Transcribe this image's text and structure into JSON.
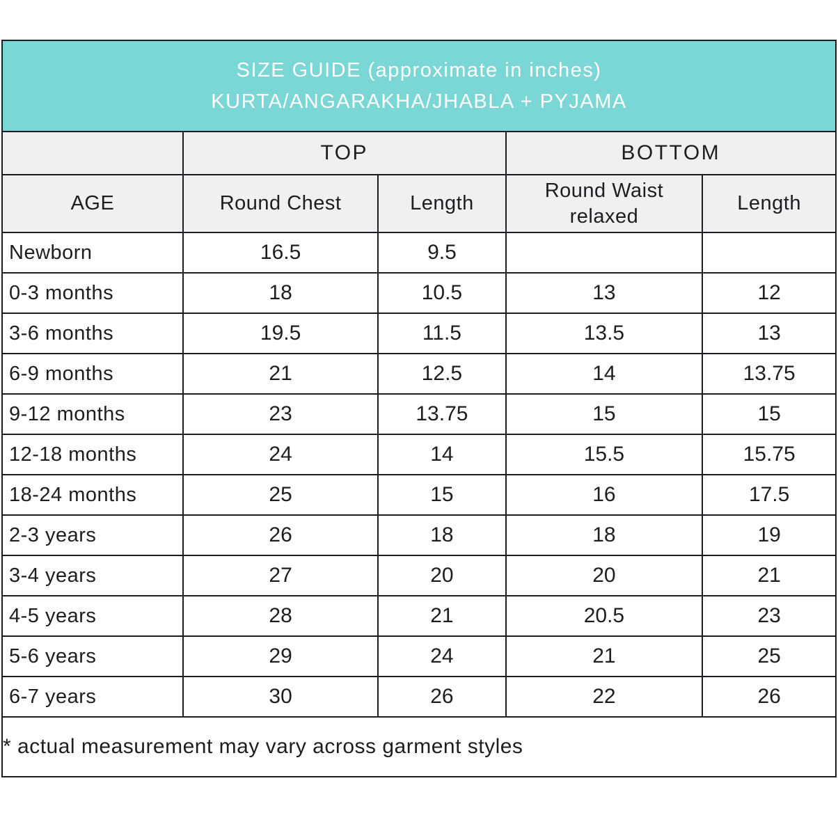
{
  "header": {
    "line1": "SIZE GUIDE (approximate in inches)",
    "line2": "KURTA/ANGARAKHA/JHABLA + PYJAMA"
  },
  "groups": {
    "top": "TOP",
    "bottom": "BOTTOM"
  },
  "columns": [
    "AGE",
    "Round Chest",
    "Length",
    "Round Waist relaxed",
    "Length"
  ],
  "rows": [
    [
      "Newborn",
      "16.5",
      "9.5",
      "",
      ""
    ],
    [
      "0-3 months",
      "18",
      "10.5",
      "13",
      "12"
    ],
    [
      "3-6 months",
      "19.5",
      "11.5",
      "13.5",
      "13"
    ],
    [
      "6-9 months",
      "21",
      "12.5",
      "14",
      "13.75"
    ],
    [
      "9-12 months",
      "23",
      "13.75",
      "15",
      "15"
    ],
    [
      "12-18 months",
      "24",
      "14",
      "15.5",
      "15.75"
    ],
    [
      "18-24 months",
      "25",
      "15",
      "16",
      "17.5"
    ],
    [
      "2-3 years",
      "26",
      "18",
      "18",
      "19"
    ],
    [
      "3-4 years",
      "27",
      "20",
      "20",
      "21"
    ],
    [
      "4-5 years",
      "28",
      "21",
      "20.5",
      "23"
    ],
    [
      "5-6 years",
      "29",
      "24",
      "21",
      "25"
    ],
    [
      "6-7 years",
      "30",
      "26",
      "22",
      "26"
    ]
  ],
  "footnote": "* actual measurement may vary across garment styles",
  "colors": {
    "banner_teal": "#7ad7d5",
    "header_gray": "#f0f0f0",
    "grid_line": "#1b1b22",
    "text": "#1e1e22",
    "banner_text": "#ffffff"
  },
  "chart_data": {
    "type": "table",
    "title": "SIZE GUIDE (approximate in inches) KURTA/ANGARAKHA/JHABLA + PYJAMA",
    "column_groups": [
      {
        "label": "",
        "span": 1
      },
      {
        "label": "TOP",
        "span": 2
      },
      {
        "label": "BOTTOM",
        "span": 2
      }
    ],
    "columns": [
      "AGE",
      "Round Chest",
      "Length",
      "Round Waist relaxed",
      "Length"
    ],
    "rows": [
      {
        "age": "Newborn",
        "top_round_chest": 16.5,
        "top_length": 9.5,
        "bottom_round_waist": null,
        "bottom_length": null
      },
      {
        "age": "0-3 months",
        "top_round_chest": 18,
        "top_length": 10.5,
        "bottom_round_waist": 13,
        "bottom_length": 12
      },
      {
        "age": "3-6 months",
        "top_round_chest": 19.5,
        "top_length": 11.5,
        "bottom_round_waist": 13.5,
        "bottom_length": 13
      },
      {
        "age": "6-9 months",
        "top_round_chest": 21,
        "top_length": 12.5,
        "bottom_round_waist": 14,
        "bottom_length": 13.75
      },
      {
        "age": "9-12 months",
        "top_round_chest": 23,
        "top_length": 13.75,
        "bottom_round_waist": 15,
        "bottom_length": 15
      },
      {
        "age": "12-18 months",
        "top_round_chest": 24,
        "top_length": 14,
        "bottom_round_waist": 15.5,
        "bottom_length": 15.75
      },
      {
        "age": "18-24 months",
        "top_round_chest": 25,
        "top_length": 15,
        "bottom_round_waist": 16,
        "bottom_length": 17.5
      },
      {
        "age": "2-3 years",
        "top_round_chest": 26,
        "top_length": 18,
        "bottom_round_waist": 18,
        "bottom_length": 19
      },
      {
        "age": "3-4 years",
        "top_round_chest": 27,
        "top_length": 20,
        "bottom_round_waist": 20,
        "bottom_length": 21
      },
      {
        "age": "4-5 years",
        "top_round_chest": 28,
        "top_length": 21,
        "bottom_round_waist": 20.5,
        "bottom_length": 23
      },
      {
        "age": "5-6 years",
        "top_round_chest": 29,
        "top_length": 24,
        "bottom_round_waist": 21,
        "bottom_length": 25
      },
      {
        "age": "6-7 years",
        "top_round_chest": 30,
        "top_length": 26,
        "bottom_round_waist": 22,
        "bottom_length": 26
      }
    ],
    "footnote": "* actual measurement may vary across garment styles",
    "units": "inches"
  }
}
